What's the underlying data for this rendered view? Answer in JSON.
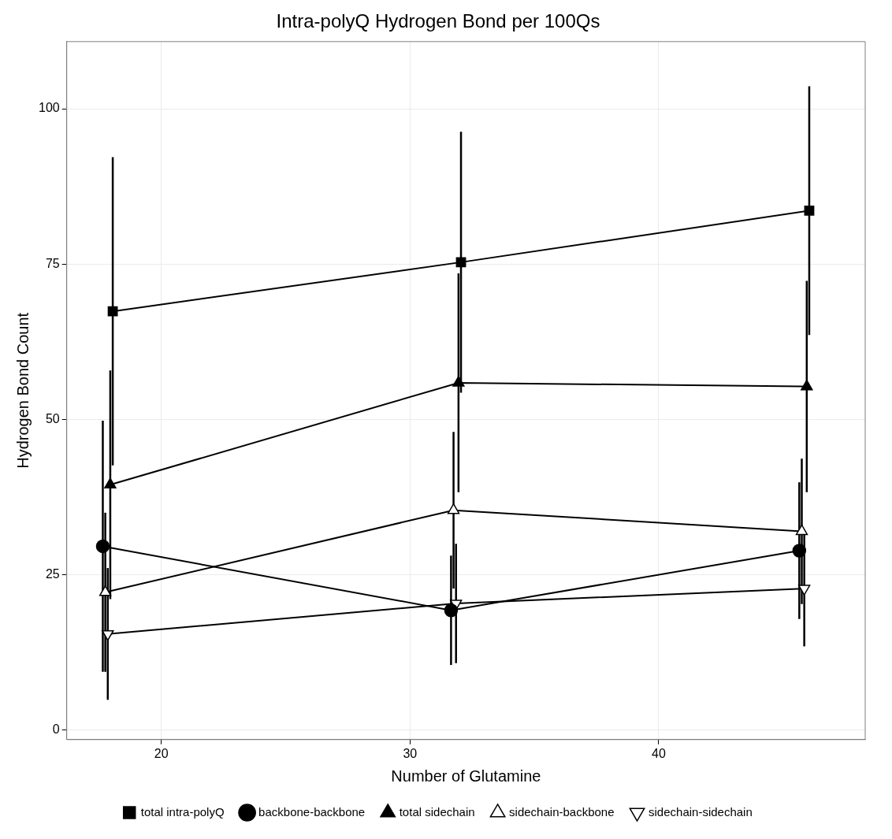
{
  "chart_data": {
    "type": "line",
    "title": "Intra-polyQ Hydrogen Bond per 100Qs",
    "xlabel": "Number of Glutamine",
    "ylabel": "Hydrogen Bond Count",
    "xlim": [
      16.2,
      48.3
    ],
    "xticks": [
      20,
      30,
      40
    ],
    "ylim": [
      -1.5,
      110.8
    ],
    "yticks": [
      0,
      25,
      50,
      75,
      100
    ],
    "grid": true,
    "legend": "bottom",
    "line_style": "solid",
    "series": [
      {
        "name": "total intra-polyQ",
        "color": "#000000",
        "marker": "square",
        "x": [
          18.05,
          32.05,
          46.05
        ],
        "values": [
          67.4,
          75.3,
          83.6
        ],
        "errors": [
          24.8,
          21,
          20
        ]
      },
      {
        "name": "backbone-backbone",
        "color": "#000000",
        "marker": "circle",
        "x": [
          17.65,
          31.65,
          45.65
        ],
        "values": [
          29.6,
          19.3,
          28.9
        ],
        "errors": [
          20.2,
          8.8,
          11
        ]
      },
      {
        "name": "total sidechain",
        "color": "#000000",
        "marker": "triangle",
        "x": [
          17.95,
          31.95,
          45.95
        ],
        "values": [
          39.5,
          55.9,
          55.3
        ],
        "errors": [
          18.4,
          17.6,
          17
        ]
      },
      {
        "name": "sidechain-backbone",
        "color": "#000000",
        "marker": "triangle-open",
        "x": [
          17.75,
          31.75,
          45.75
        ],
        "values": [
          22.2,
          35.4,
          32
        ],
        "errors": [
          12.8,
          12.6,
          11.7
        ]
      },
      {
        "name": "sidechain-sidechain",
        "color": "#000000",
        "marker": "triangle-down-open",
        "x": [
          17.85,
          31.85,
          45.85
        ],
        "values": [
          15.5,
          20.4,
          22.8
        ],
        "errors": [
          10.6,
          9.6,
          9.3
        ]
      }
    ]
  }
}
